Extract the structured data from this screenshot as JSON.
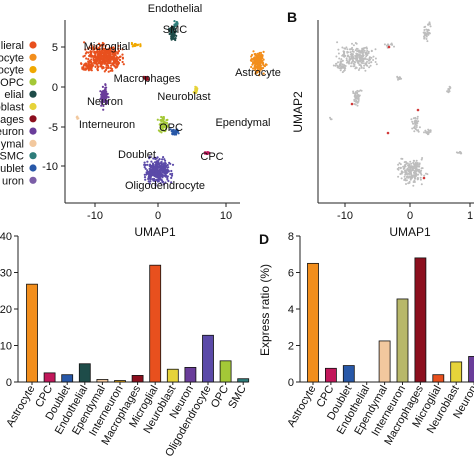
{
  "panel_labels": {
    "b": "B",
    "d": "D"
  },
  "legend": {
    "entries": [
      {
        "label": "oglieral",
        "color": "#e8501e"
      },
      {
        "label": "ocyte",
        "color": "#f28e1c"
      },
      {
        "label": "ocyte",
        "color": "#f0a800"
      },
      {
        "label": "OPC",
        "color": "#a4c837"
      },
      {
        "label": "elial",
        "color": "#1e4c49"
      },
      {
        "label": "oblast",
        "color": "#e6d33a"
      },
      {
        "label": "ages",
        "color": "#8c0f1e"
      },
      {
        "label": "euron",
        "color": "#6a3d9a"
      },
      {
        "label": "ymal",
        "color": "#f2c89e"
      },
      {
        "label": "SMC",
        "color": "#2e7d7a"
      },
      {
        "label": "oublet",
        "color": "#2858a8"
      },
      {
        "label": "uron",
        "color": "#7b5ea7"
      }
    ]
  },
  "umap_a": {
    "x_ticks": [
      "-10",
      "0",
      "10"
    ],
    "y_ticks": [
      "5",
      "0",
      "-5",
      "-10"
    ],
    "xlabel": "UMAP1",
    "clusters": [
      {
        "label": "Microglial",
        "color": "#e8501e"
      },
      {
        "label": "Endothelial",
        "color": "#1e4c49"
      },
      {
        "label": "SMC",
        "color": "#2e7d7a"
      },
      {
        "label": "Astrocyte",
        "color": "#f28e1c"
      },
      {
        "label": "Macrophages",
        "color": "#8c0f1e"
      },
      {
        "label": "Neuron",
        "color": "#6a3d9a"
      },
      {
        "label": "Neuroblast",
        "color": "#e6d33a"
      },
      {
        "label": "Interneuron",
        "color": "#f0a800"
      },
      {
        "label": "Ependymal",
        "color": "#f2c89e"
      },
      {
        "label": "OPC",
        "color": "#a4c837"
      },
      {
        "label": "Doublet",
        "color": "#2858a8"
      },
      {
        "label": "CPC",
        "color": "#c2185b"
      },
      {
        "label": "Oligodendrocyte",
        "color": "#5b4aa8"
      }
    ]
  },
  "umap_b": {
    "x_ticks": [
      "-10",
      "0",
      "1"
    ],
    "xlabel": "UMAP1",
    "ylabel": "UMAP2"
  },
  "chart_data": [
    {
      "type": "bar",
      "categories": [
        "Astrocyte",
        "CPC",
        "Doublet",
        "Endothelial",
        "Ependymal",
        "Interneuron",
        "Macrophages",
        "Microglial",
        "Neuroblast",
        "Neuron",
        "Oligodendrocyte",
        "OPC",
        "SMC"
      ],
      "values": [
        26.8,
        2.5,
        2.0,
        5.0,
        0.7,
        0.4,
        1.8,
        32.0,
        3.5,
        4.0,
        12.8,
        5.8,
        0.9
      ],
      "colors": [
        "#f28e1c",
        "#c2185b",
        "#2858a8",
        "#1e4c49",
        "#f2c89e",
        "#f0a800",
        "#8c0f1e",
        "#e8501e",
        "#e6d33a",
        "#6a3d9a",
        "#5b4aa8",
        "#a4c837",
        "#2e7d7a"
      ],
      "y_ticks": [
        "40",
        "30",
        "20",
        "10",
        "0"
      ],
      "ylim": [
        0,
        40
      ],
      "ylabel": ""
    },
    {
      "type": "bar",
      "categories": [
        "Astrocyte",
        "CPC",
        "Doublet",
        "Endothelial",
        "Ependymal",
        "Interneuron",
        "Macrophages",
        "Microglial",
        "Neuroblast",
        "Neuron"
      ],
      "values": [
        6.5,
        0.75,
        0.9,
        0.0,
        2.25,
        4.55,
        6.8,
        0.4,
        1.1,
        1.4
      ],
      "colors": [
        "#f28e1c",
        "#c2185b",
        "#2858a8",
        "#1e4c49",
        "#f2c89e",
        "#b8b86a",
        "#8c0f1e",
        "#e8501e",
        "#e6d33a",
        "#6a3d9a"
      ],
      "y_ticks": [
        "8",
        "6",
        "4",
        "2",
        "0"
      ],
      "ylim": [
        0,
        8
      ],
      "ylabel": "Express ratio (%)"
    }
  ]
}
